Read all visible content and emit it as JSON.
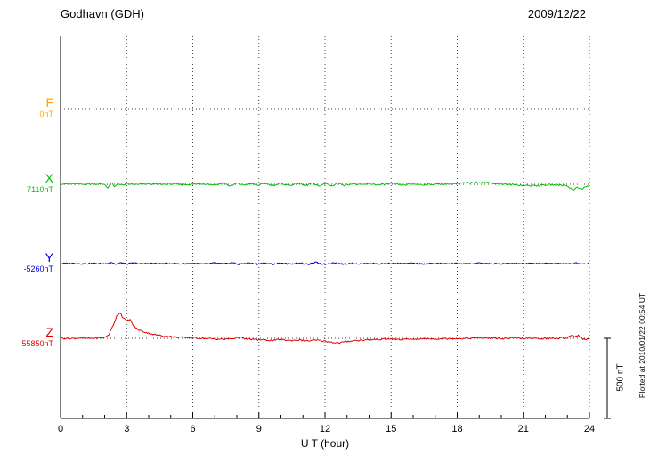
{
  "header": {
    "station": "Godhavn (GDH)",
    "date": "2009/12/22"
  },
  "chart_data": {
    "type": "line",
    "title": "Godhavn (GDH) magnetogram 2009/12/22",
    "xlabel": "U T (hour)",
    "x_range": [
      0,
      24
    ],
    "x_ticks": [
      0,
      3,
      6,
      9,
      12,
      15,
      18,
      21,
      24
    ],
    "grid": "dotted vertical at 3h intervals, dotted horizontal at each channel baseline",
    "scale": {
      "label": "500 nT",
      "nT": 500
    },
    "footnote": "Plotted at 2010/01/22 00:54 UT",
    "series": [
      {
        "name": "F",
        "offset_label": "0nT",
        "color": "#FFA500",
        "drawn": false,
        "noise_nT": 0,
        "points": [
          [
            0,
            0
          ],
          [
            24,
            0
          ]
        ]
      },
      {
        "name": "X",
        "offset_label": "7110nT",
        "color": "#00C000",
        "drawn": true,
        "noise_nT": 5,
        "points": [
          [
            0,
            3
          ],
          [
            0.5,
            1
          ],
          [
            1,
            0
          ],
          [
            1.5,
            2
          ],
          [
            2,
            0
          ],
          [
            2.15,
            -22
          ],
          [
            2.3,
            12
          ],
          [
            2.45,
            -18
          ],
          [
            2.6,
            6
          ],
          [
            2.8,
            -6
          ],
          [
            3,
            2
          ],
          [
            3.5,
            -2
          ],
          [
            4,
            3
          ],
          [
            4.5,
            0
          ],
          [
            5,
            2
          ],
          [
            5.5,
            -2
          ],
          [
            6,
            0
          ],
          [
            6.5,
            4
          ],
          [
            7,
            -4
          ],
          [
            7.4,
            8
          ],
          [
            7.7,
            -12
          ],
          [
            8,
            6
          ],
          [
            8.3,
            -4
          ],
          [
            8.7,
            3
          ],
          [
            9,
            -6
          ],
          [
            9.3,
            6
          ],
          [
            9.6,
            -8
          ],
          [
            10,
            5
          ],
          [
            10.4,
            -6
          ],
          [
            10.8,
            8
          ],
          [
            11.1,
            -10
          ],
          [
            11.4,
            8
          ],
          [
            11.7,
            -12
          ],
          [
            12,
            6
          ],
          [
            12.3,
            -10
          ],
          [
            12.6,
            8
          ],
          [
            12.9,
            -6
          ],
          [
            13.2,
            4
          ],
          [
            13.6,
            -4
          ],
          [
            14,
            3
          ],
          [
            14.5,
            -3
          ],
          [
            15,
            4
          ],
          [
            15.5,
            -5
          ],
          [
            16,
            2
          ],
          [
            16.5,
            -2
          ],
          [
            17,
            1
          ],
          [
            17.5,
            2
          ],
          [
            18,
            4
          ],
          [
            18.5,
            9
          ],
          [
            19,
            13
          ],
          [
            19.4,
            10
          ],
          [
            19.8,
            4
          ],
          [
            20.2,
            0
          ],
          [
            20.6,
            -3
          ],
          [
            21,
            -6
          ],
          [
            21.4,
            -9
          ],
          [
            21.8,
            -6
          ],
          [
            22.2,
            -3
          ],
          [
            22.6,
            -4
          ],
          [
            23,
            -8
          ],
          [
            23.25,
            -38
          ],
          [
            23.45,
            -15
          ],
          [
            23.65,
            -32
          ],
          [
            23.85,
            -12
          ],
          [
            24,
            -14
          ]
        ]
      },
      {
        "name": "Y",
        "offset_label": "-5260nT",
        "color": "#0000E0",
        "drawn": true,
        "noise_nT": 4,
        "points": [
          [
            0,
            0
          ],
          [
            0.5,
            2
          ],
          [
            1,
            -1
          ],
          [
            1.5,
            1
          ],
          [
            2,
            -2
          ],
          [
            2.3,
            9
          ],
          [
            2.5,
            -4
          ],
          [
            2.8,
            6
          ],
          [
            3,
            -3
          ],
          [
            3.3,
            4
          ],
          [
            3.7,
            -2
          ],
          [
            4,
            2
          ],
          [
            4.5,
            -1
          ],
          [
            5,
            1
          ],
          [
            5.5,
            -2
          ],
          [
            6,
            2
          ],
          [
            6.5,
            -4
          ],
          [
            7,
            4
          ],
          [
            7.4,
            -3
          ],
          [
            7.8,
            6
          ],
          [
            8.1,
            -6
          ],
          [
            8.5,
            5
          ],
          [
            8.9,
            -4
          ],
          [
            9.2,
            4
          ],
          [
            9.6,
            -5
          ],
          [
            10,
            4
          ],
          [
            10.4,
            -4
          ],
          [
            10.8,
            5
          ],
          [
            11.2,
            -6
          ],
          [
            11.6,
            7
          ],
          [
            12,
            -5
          ],
          [
            12.4,
            6
          ],
          [
            12.8,
            -4
          ],
          [
            13.2,
            3
          ],
          [
            13.6,
            -3
          ],
          [
            14,
            2
          ],
          [
            14.5,
            -2
          ],
          [
            15,
            2
          ],
          [
            15.5,
            -1
          ],
          [
            16,
            1
          ],
          [
            16.5,
            -2
          ],
          [
            17,
            1
          ],
          [
            17.5,
            -1
          ],
          [
            18,
            1
          ],
          [
            18.5,
            -1
          ],
          [
            19,
            2
          ],
          [
            19.5,
            -1
          ],
          [
            20,
            -2
          ],
          [
            20.5,
            1
          ],
          [
            21,
            -1
          ],
          [
            21.5,
            1
          ],
          [
            22,
            0
          ],
          [
            22.5,
            2
          ],
          [
            23,
            -3
          ],
          [
            23.4,
            4
          ],
          [
            23.7,
            -2
          ],
          [
            24,
            1
          ]
        ]
      },
      {
        "name": "Z",
        "offset_label": "55850nT",
        "color": "#E00000",
        "drawn": true,
        "noise_nT": 5,
        "points": [
          [
            0,
            1
          ],
          [
            0.4,
            -2
          ],
          [
            0.8,
            2
          ],
          [
            1.2,
            -1
          ],
          [
            1.6,
            1
          ],
          [
            2,
            4
          ],
          [
            2.2,
            25
          ],
          [
            2.4,
            85
          ],
          [
            2.55,
            140
          ],
          [
            2.7,
            162
          ],
          [
            2.85,
            125
          ],
          [
            3,
            110
          ],
          [
            3.15,
            118
          ],
          [
            3.3,
            80
          ],
          [
            3.5,
            55
          ],
          [
            3.75,
            42
          ],
          [
            4,
            32
          ],
          [
            4.3,
            22
          ],
          [
            4.6,
            16
          ],
          [
            5,
            10
          ],
          [
            5.5,
            6
          ],
          [
            6,
            3
          ],
          [
            6.5,
            0
          ],
          [
            7,
            -4
          ],
          [
            7.4,
            -6
          ],
          [
            7.8,
            -2
          ],
          [
            8.1,
            7
          ],
          [
            8.4,
            -4
          ],
          [
            8.8,
            -8
          ],
          [
            9.2,
            -10
          ],
          [
            9.6,
            -13
          ],
          [
            10,
            -8
          ],
          [
            10.4,
            -14
          ],
          [
            10.8,
            -10
          ],
          [
            11.2,
            -16
          ],
          [
            11.6,
            -12
          ],
          [
            12,
            -18
          ],
          [
            12.3,
            -24
          ],
          [
            12.6,
            -30
          ],
          [
            12.9,
            -22
          ],
          [
            13.2,
            -16
          ],
          [
            13.6,
            -12
          ],
          [
            14,
            -9
          ],
          [
            14.5,
            -6
          ],
          [
            15,
            -4
          ],
          [
            15.4,
            -9
          ],
          [
            15.8,
            -6
          ],
          [
            16.2,
            -4
          ],
          [
            16.6,
            -3
          ],
          [
            17,
            -3
          ],
          [
            17.5,
            -2
          ],
          [
            18,
            -1
          ],
          [
            18.5,
            0
          ],
          [
            19,
            2
          ],
          [
            19.5,
            1
          ],
          [
            20,
            -2
          ],
          [
            20.5,
            0
          ],
          [
            21,
            -1
          ],
          [
            21.5,
            -2
          ],
          [
            22,
            -1
          ],
          [
            22.5,
            0
          ],
          [
            23,
            3
          ],
          [
            23.2,
            22
          ],
          [
            23.35,
            10
          ],
          [
            23.5,
            19
          ],
          [
            23.7,
            -4
          ],
          [
            23.85,
            -8
          ],
          [
            24,
            -6
          ]
        ]
      }
    ]
  }
}
